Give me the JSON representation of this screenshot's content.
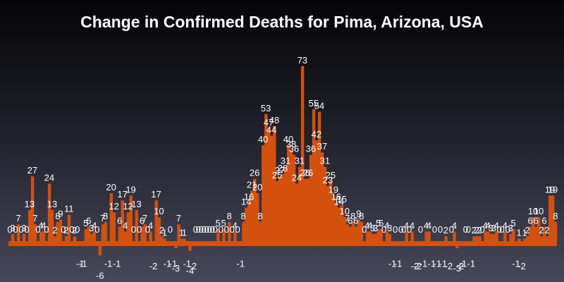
{
  "chart_data": {
    "type": "bar",
    "title": "Change in Confirmed Deaths for Pima, Arizona, USA",
    "xlabel": "",
    "ylabel": "",
    "ylim": [
      -8,
      75
    ],
    "bar_color": "#d4500f",
    "label_color": "#ffffff",
    "values": [
      0,
      3,
      0,
      7,
      0,
      3,
      0,
      13,
      27,
      7,
      0,
      4,
      4,
      0,
      24,
      13,
      2,
      8,
      9,
      0,
      2,
      11,
      0,
      2,
      0,
      -1,
      -1,
      5,
      6,
      3,
      4,
      0,
      -6,
      7,
      8,
      -1,
      20,
      12,
      -1,
      6,
      17,
      4,
      12,
      19,
      0,
      13,
      0,
      6,
      7,
      0,
      4,
      -2,
      17,
      10,
      2,
      1,
      -1,
      0,
      -1,
      -3,
      7,
      1,
      1,
      -1,
      -4,
      -2,
      0,
      0,
      0,
      0,
      0,
      0,
      0,
      0,
      5,
      0,
      5,
      0,
      8,
      0,
      4,
      0,
      -1,
      8,
      14,
      16,
      21,
      26,
      20,
      8,
      40,
      53,
      47,
      44,
      48,
      25,
      27,
      28,
      31,
      40,
      38,
      36,
      24,
      31,
      73,
      26,
      26,
      36,
      55,
      42,
      54,
      37,
      31,
      23,
      25,
      19,
      16,
      14,
      15,
      10,
      7,
      6,
      8,
      6,
      9,
      8,
      0,
      4,
      4,
      3,
      3,
      5,
      5,
      0,
      4,
      3,
      -1,
      0,
      -1,
      0,
      0,
      4,
      0,
      4,
      -2,
      -2,
      0,
      -1,
      4,
      4,
      -1,
      0,
      -1,
      0,
      -1,
      2,
      -2,
      0,
      4,
      -3,
      -2,
      -1,
      0,
      0,
      -1,
      2,
      2,
      2,
      0,
      4,
      4,
      3,
      3,
      4,
      0,
      0,
      4,
      0,
      3,
      5,
      -1,
      1,
      -2,
      1,
      2,
      6,
      10,
      6,
      10,
      2,
      6,
      2,
      19,
      19,
      8
    ],
    "grid": false,
    "legend": "none"
  }
}
